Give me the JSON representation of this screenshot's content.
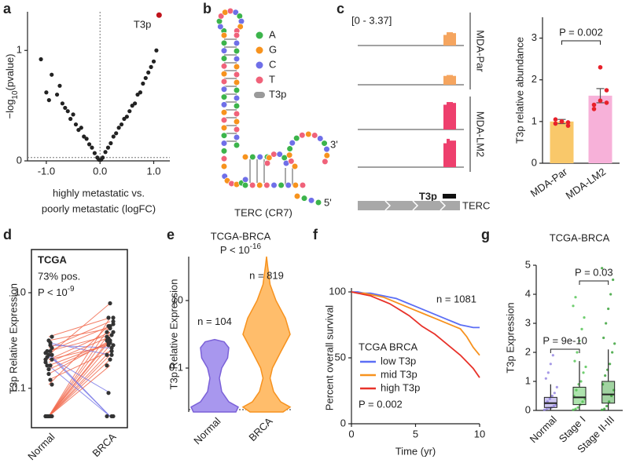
{
  "chart_data": [
    {
      "type": "scatter",
      "panel": "a",
      "x": [
        -1.1,
        -1.0,
        -0.95,
        -0.9,
        -0.8,
        -0.75,
        -0.7,
        -0.65,
        -0.6,
        -0.55,
        -0.5,
        -0.45,
        -0.4,
        -0.35,
        -0.3,
        -0.25,
        -0.2,
        -0.15,
        -0.1,
        -0.05,
        -0.02,
        0.02,
        0.05,
        0.1,
        0.15,
        0.2,
        0.25,
        0.3,
        0.35,
        0.4,
        0.45,
        0.5,
        0.55,
        0.6,
        0.65,
        0.7,
        0.75,
        0.8,
        0.85,
        0.9,
        0.95,
        1.0,
        1.05
      ],
      "y": [
        0.92,
        0.62,
        0.55,
        0.78,
        0.6,
        0.68,
        0.52,
        0.48,
        0.45,
        0.38,
        0.42,
        0.33,
        0.28,
        0.3,
        0.22,
        0.2,
        0.15,
        0.12,
        0.07,
        0.03,
        0.01,
        0.01,
        0.03,
        0.08,
        0.12,
        0.16,
        0.22,
        0.25,
        0.3,
        0.33,
        0.38,
        0.4,
        0.45,
        0.5,
        0.52,
        0.6,
        0.62,
        0.7,
        0.75,
        0.8,
        0.85,
        0.9,
        1.0
      ],
      "color": "#222222",
      "xlim": [
        -1.35,
        1.3
      ],
      "ylim": [
        0,
        1.35
      ],
      "xticks": [
        {
          "value": -1.0,
          "label": "-1.0"
        },
        {
          "value": 0.0,
          "label": "0.0"
        },
        {
          "value": 1.0,
          "label": "1.0"
        }
      ],
      "yticks": [
        0,
        1
      ],
      "vlines": [
        0
      ],
      "hlines": [
        0.03
      ],
      "annotations": [
        {
          "text": "T3p",
          "x": 1.1,
          "y": 1.32,
          "color": "#c0141c"
        }
      ],
      "x_label": [
        "highly metastatic vs.",
        "poorly metastatic (logFC)"
      ],
      "y_label": {
        "text": "−log",
        "sub": "10",
        "rest": "(pvalue)"
      }
    },
    {
      "type": "diagram",
      "panel": "b",
      "legend": [
        {
          "label": "A",
          "color": "#3cb44b"
        },
        {
          "label": "G",
          "color": "#f7931e"
        },
        {
          "label": "C",
          "color": "#6f6fe8"
        },
        {
          "label": "T",
          "color": "#f0627a"
        },
        {
          "label": "T3p",
          "color": "#9a9a9a"
        }
      ],
      "caption": "TERC (CR7)",
      "ends": [
        "3'",
        "5'"
      ]
    },
    {
      "type": "tracks",
      "panel": "c",
      "range_label": "[0 - 3.37]",
      "ylim": [
        0,
        3.37
      ],
      "groups": [
        {
          "name": "MDA-Par",
          "color": "#f5a55f",
          "tracks": [
            [
              1.2,
              1.5,
              1.5,
              1.4
            ],
            [
              1.0,
              1.1,
              1.1,
              1.0
            ]
          ]
        },
        {
          "name": "MDA-LM2",
          "color": "#ee3f6d",
          "tracks": [
            [
              2.8,
              3.1,
              3.1,
              3.0
            ],
            [
              2.7,
              3.2,
              3.0,
              3.0
            ]
          ]
        }
      ],
      "feature": "T3p",
      "gene": "TERC"
    },
    {
      "type": "bar",
      "categories": [
        "MDA-Par",
        "MDA-LM2"
      ],
      "values": [
        1.0,
        1.62
      ],
      "errors": [
        0.05,
        0.17
      ],
      "colors": [
        "#f9c86a",
        "#f7b1d9"
      ],
      "points": [
        [
          0.95,
          1.0,
          0.9,
          1.05,
          1.0,
          0.98
        ],
        [
          1.3,
          2.3,
          1.45,
          1.4,
          1.5,
          1.75
        ]
      ],
      "point_color": "#e8202a",
      "ylim": [
        0,
        3.5
      ],
      "yticks": [
        0,
        1,
        2,
        3
      ],
      "y_label": "T3p relative abundance",
      "annotation": "P = 0.002"
    },
    {
      "type": "paired",
      "panel": "d",
      "log_scale": true,
      "series": [
        {
          "name": "Normal",
          "values": [
            0.026,
            0.026,
            0.026,
            0.026,
            0.026,
            0.026,
            0.026,
            0.026,
            0.3,
            0.5,
            0.4,
            0.6,
            0.25,
            0.8,
            1.2,
            0.35,
            0.45,
            0.2,
            0.15,
            0.7,
            0.55,
            0.3,
            1.0,
            0.9,
            0.12,
            0.026,
            0.026,
            0.5,
            0.6,
            0.4
          ]
        },
        {
          "name": "BRCA",
          "values": [
            1.0,
            0.8,
            2.0,
            0.6,
            1.5,
            0.5,
            3.0,
            0.4,
            0.026,
            0.026,
            1.5,
            2.0,
            0.9,
            0.7,
            3.0,
            1.2,
            0.08,
            1.0,
            0.6,
            2.5,
            0.026,
            0.9,
            1.8,
            0.5,
            2.2,
            0.3,
            1.1,
            6.0,
            1.3,
            0.8
          ]
        }
      ],
      "up_color": "#f26b4f",
      "down_color": "#7b7be8",
      "point_color": "#333333",
      "ylim": [
        0.015,
        80
      ],
      "yticks": [
        0.1,
        10
      ],
      "y_label": "T3p Relative Expression",
      "annotations": [
        "TCGA",
        "73% pos."
      ],
      "p_value": {
        "text": "P < 10",
        "sup": "-9"
      }
    },
    {
      "type": "violin",
      "panel": "e",
      "log_scale": true,
      "title": "TCGA-BRCA",
      "p_value": {
        "text": "P < 10",
        "sup": "-16"
      },
      "categories": [
        "Normal",
        "BRCA"
      ],
      "violins": [
        {
          "y": [
            0.005,
            0.007,
            0.01,
            0.02,
            0.05,
            0.1,
            0.2,
            0.4,
            0.6,
            0.7
          ],
          "density": [
            0.9,
            1.0,
            0.6,
            0.3,
            0.2,
            0.3,
            0.55,
            0.6,
            0.4,
            0
          ],
          "fill": "#a897ee",
          "stroke": "#7b61d8"
        },
        {
          "y": [
            0.005,
            0.007,
            0.01,
            0.02,
            0.05,
            0.1,
            0.3,
            1,
            3,
            10,
            30,
            100,
            200
          ],
          "density": [
            0.7,
            1.0,
            0.6,
            0.3,
            0.15,
            0.25,
            0.6,
            1.0,
            0.8,
            0.4,
            0.15,
            0.05,
            0
          ],
          "fill": "#ffbd6b",
          "stroke": "#f7921e"
        }
      ],
      "n_labels": [
        "n = 104",
        "n = 819"
      ],
      "ylim": [
        0.005,
        200
      ],
      "yticks": [
        0.1,
        10
      ],
      "y_label": "T3p Relative Expression"
    },
    {
      "type": "line",
      "panel": "f",
      "x": [
        0,
        0.5,
        1,
        1.5,
        2,
        2.5,
        3,
        3.5,
        4,
        4.5,
        5,
        5.5,
        6,
        6.5,
        7,
        7.5,
        8,
        8.5,
        9,
        9.5,
        10
      ],
      "series": [
        {
          "name": "low T3p",
          "color": "#5b6ef5",
          "values": [
            100,
            100,
            99,
            99,
            98,
            97,
            96,
            95,
            93,
            91,
            89,
            87,
            85,
            83,
            81,
            79,
            77,
            75,
            74,
            73,
            73
          ]
        },
        {
          "name": "mid T3p",
          "color": "#f7921e",
          "values": [
            100,
            99,
            99,
            98,
            97,
            96,
            94,
            92,
            90,
            88,
            86,
            84,
            82,
            80,
            78,
            76,
            74,
            72,
            66,
            58,
            52
          ]
        },
        {
          "name": "high T3p",
          "color": "#e8322a",
          "values": [
            100,
            99,
            98,
            97,
            95,
            93,
            91,
            88,
            85,
            82,
            78,
            74,
            71,
            68,
            64,
            60,
            56,
            52,
            47,
            42,
            35
          ]
        }
      ],
      "xlim": [
        0,
        10
      ],
      "ylim": [
        0,
        100
      ],
      "xticks": [
        0,
        5,
        10
      ],
      "yticks": [
        0,
        50,
        100
      ],
      "x_label": "Time (yr)",
      "y_label": "Percent overall survival",
      "legend_title": "TCGA BRCA",
      "p_value": "P = 0.002",
      "n_label": "n = 1081"
    },
    {
      "type": "boxplot",
      "panel": "g",
      "title": "TCGA-BRCA",
      "categories": [
        "Normal",
        "Stage I",
        "Stage II-III"
      ],
      "boxes": [
        {
          "whisker_low": 0,
          "q1": 0.1,
          "median": 0.25,
          "q3": 0.45,
          "whisker_high": 0.9,
          "points": [
            0.02,
            0.05,
            0.08,
            0.1,
            0.15,
            0.2,
            0.25,
            0.3,
            0.4,
            0.5,
            0.6,
            0.8,
            1.1,
            1.3,
            1.6,
            1.9
          ]
        },
        {
          "whisker_low": 0,
          "q1": 0.2,
          "median": 0.45,
          "q3": 0.8,
          "whisker_high": 1.7,
          "points": [
            0.02,
            0.05,
            0.1,
            0.2,
            0.3,
            0.4,
            0.5,
            0.7,
            0.9,
            1.0,
            1.3,
            1.5,
            1.7,
            2.0,
            2.4,
            2.8,
            3.2,
            3.6,
            3.9
          ]
        },
        {
          "whisker_low": 0,
          "q1": 0.25,
          "median": 0.55,
          "q3": 1.0,
          "whisker_high": 2.1,
          "points": [
            0.02,
            0.05,
            0.15,
            0.3,
            0.5,
            0.7,
            0.9,
            1.2,
            1.4,
            1.6,
            2.0,
            2.3,
            2.5,
            3.0,
            3.5,
            4.0,
            4.5,
            4.9
          ]
        }
      ],
      "colors": [
        "#9080e0",
        "#4cc24c",
        "#2f9e2f"
      ],
      "ylim": [
        0,
        5
      ],
      "yticks": [
        0,
        1,
        2,
        3,
        4,
        5
      ],
      "y_label": "T3p Expression",
      "comparisons": [
        {
          "between": [
            0,
            1
          ],
          "label": "P = 9e-10"
        },
        {
          "between": [
            1,
            2
          ],
          "label": "P = 0.03"
        }
      ]
    }
  ]
}
